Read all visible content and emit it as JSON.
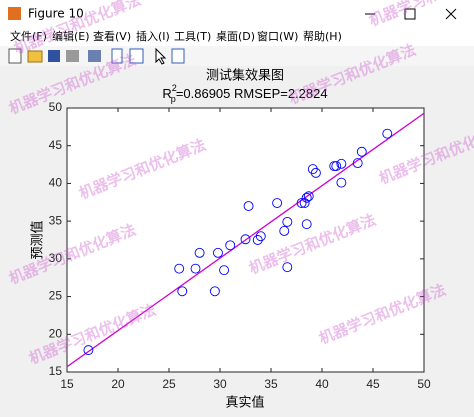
{
  "window": {
    "title": "Figure 10",
    "menu": [
      "文件(F)",
      "编辑(E)",
      "查看(V)",
      "插入(I)",
      "工具(T)",
      "桌面(D)",
      "窗口(W)",
      "帮助(H)"
    ],
    "watermark": "机器学习和优化算法"
  },
  "chart_data": {
    "type": "scatter",
    "title": "测试集效果图",
    "subtitle": {
      "base": "R",
      "sup": "2",
      "sub": "p",
      "rest": "=0.86905  RMSEP=2.2824"
    },
    "xlabel": "真实值",
    "ylabel": "预测值",
    "x": [
      17.1,
      26.0,
      26.3,
      27.6,
      28.0,
      29.5,
      29.8,
      30.4,
      31.0,
      32.5,
      32.8,
      33.7,
      34.0,
      35.6,
      36.3,
      36.6,
      36.6,
      38.0,
      38.3,
      38.5,
      38.5,
      38.7,
      39.1,
      39.4,
      41.2,
      41.4,
      41.9,
      41.9,
      43.5,
      43.9,
      46.4
    ],
    "values": [
      17.9,
      28.7,
      25.7,
      28.7,
      30.8,
      25.7,
      30.8,
      28.5,
      31.8,
      32.6,
      37.0,
      32.5,
      33.0,
      37.4,
      33.7,
      34.9,
      28.9,
      37.4,
      37.4,
      34.6,
      38.1,
      38.3,
      41.9,
      41.4,
      42.3,
      42.3,
      42.6,
      40.1,
      42.7,
      44.2,
      46.6
    ],
    "color": "#0000ff",
    "fit_line": {
      "x": [
        15,
        50
      ],
      "y": [
        15.7,
        49.3
      ],
      "color": "#d000d0"
    },
    "xlim": [
      15,
      50
    ],
    "ylim": [
      15,
      50
    ],
    "xticks": [
      15,
      20,
      25,
      30,
      35,
      40,
      45,
      50
    ],
    "yticks": [
      15,
      20,
      25,
      30,
      35,
      40,
      45,
      50
    ]
  }
}
